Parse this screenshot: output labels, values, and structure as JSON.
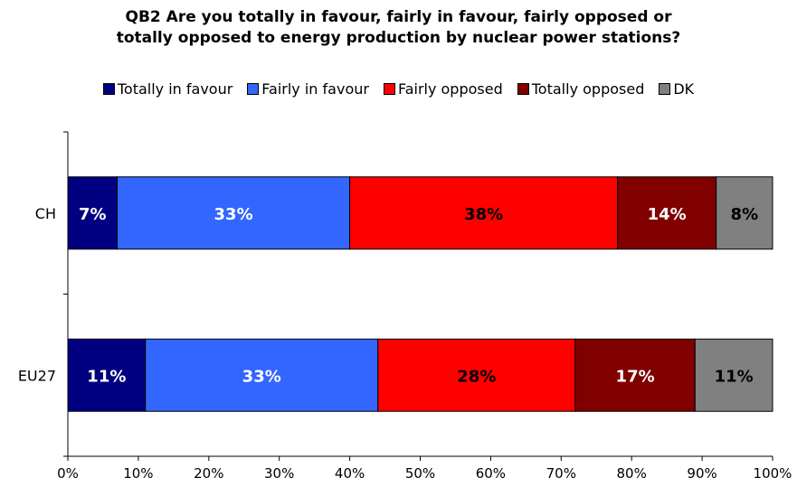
{
  "chart_data": {
    "type": "bar",
    "orientation": "horizontal",
    "stacked": true,
    "title_lines": [
      "QB2 Are you totally in favour, fairly in favour, fairly opposed or",
      "totally opposed to energy production by nuclear power stations?"
    ],
    "categories": [
      "CH",
      "EU27"
    ],
    "series": [
      {
        "name": "Totally in favour",
        "color": "#000080",
        "label_color": "#ffffff",
        "values": [
          7,
          11
        ]
      },
      {
        "name": "Fairly in favour",
        "color": "#3366ff",
        "label_color": "#ffffff",
        "values": [
          33,
          33
        ]
      },
      {
        "name": "Fairly opposed",
        "color": "#ff0000",
        "label_color": "#000000",
        "values": [
          38,
          28
        ]
      },
      {
        "name": "Totally opposed",
        "color": "#800000",
        "label_color": "#ffffff",
        "values": [
          14,
          17
        ]
      },
      {
        "name": "DK",
        "color": "#808080",
        "label_color": "#000000",
        "values": [
          8,
          11
        ]
      }
    ],
    "value_suffix": "%",
    "xlim": [
      0,
      100
    ],
    "xticks": [
      "0%",
      "10%",
      "20%",
      "30%",
      "40%",
      "50%",
      "60%",
      "70%",
      "80%",
      "90%",
      "100%"
    ],
    "grid": false,
    "legend_position": "top"
  }
}
